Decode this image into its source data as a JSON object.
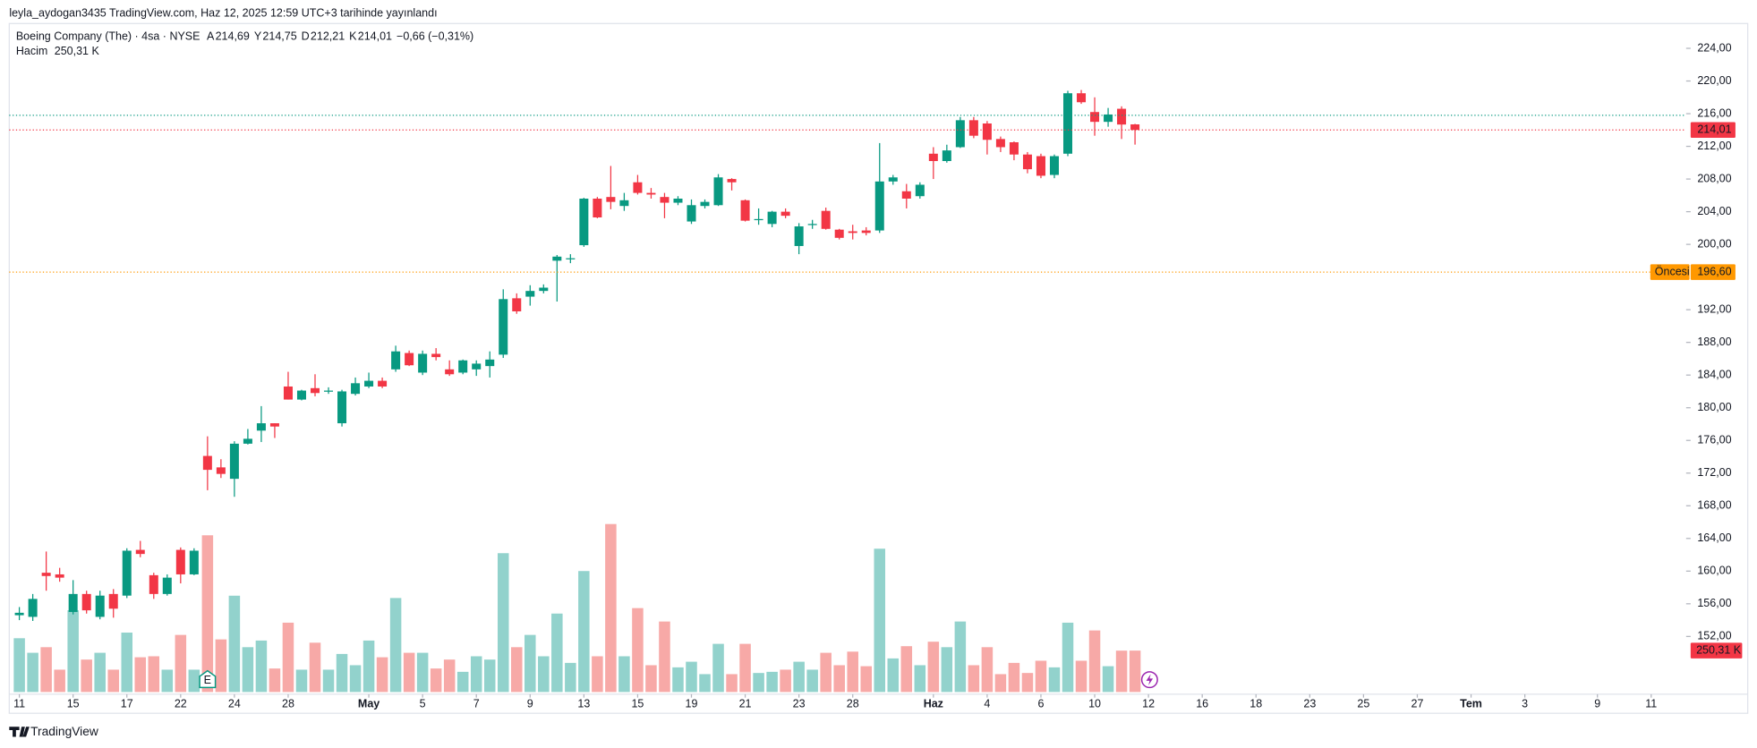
{
  "header": {
    "published": "leyla_aydogan3435 TradingView.com, Haz 12, 2025 12:59 UTC+3 tarihinde yayınlandı",
    "symbol": "Boeing Company (The) · 4sa · NYSE",
    "ohlc": [
      {
        "key": "A",
        "value": "214,69"
      },
      {
        "key": "Y",
        "value": "214,75"
      },
      {
        "key": "D",
        "value": "212,21"
      },
      {
        "key": "K",
        "value": "214,01"
      }
    ],
    "change": "−0,66 (−0,31%)",
    "volume_title": "Hacim",
    "footer": "TradingView"
  },
  "chart_data": {
    "type": "candlestick",
    "open": [
      154.6,
      154.4,
      159.8,
      159.6,
      155.0,
      157.2,
      154.4,
      157.2,
      157.0,
      162.6,
      159.5,
      157.2,
      162.6,
      159.6,
      174.1,
      172.7,
      171.3,
      175.6,
      177.2,
      178.1,
      182.6,
      181.0,
      182.4,
      182.0,
      178.1,
      181.7,
      182.6,
      183.3,
      184.7,
      186.7,
      184.3,
      186.6,
      184.7,
      184.3,
      184.7,
      185.1,
      186.5,
      193.4,
      193.6,
      194.3,
      198.0,
      198.2,
      199.9,
      205.6,
      205.8,
      204.7,
      207.6,
      206.3,
      205.8,
      205.1,
      202.8,
      204.7,
      204.8,
      208.0,
      205.4,
      203.0,
      202.5,
      204.0,
      199.8,
      202.4,
      204.1,
      201.8,
      201.6,
      201.7,
      201.7,
      207.7,
      206.5,
      205.9,
      211.1,
      210.2,
      211.9,
      215.2,
      214.8,
      212.9,
      212.5,
      211.0,
      210.8,
      208.5,
      211.1,
      218.5,
      216.2,
      215.0,
      216.6,
      214.69
    ],
    "high": [
      155.6,
      157.2,
      162.4,
      160.4,
      158.9,
      157.6,
      157.6,
      157.8,
      162.8,
      163.7,
      159.8,
      159.6,
      162.9,
      162.8,
      176.5,
      173.7,
      175.9,
      177.4,
      180.2,
      178.1,
      184.4,
      182.2,
      184.1,
      182.5,
      182.2,
      183.7,
      184.3,
      183.7,
      187.6,
      187.0,
      187.0,
      187.3,
      185.8,
      185.9,
      185.8,
      186.9,
      194.5,
      194.0,
      195.0,
      195.1,
      198.7,
      198.8,
      205.7,
      205.8,
      209.6,
      206.3,
      208.5,
      206.9,
      206.3,
      205.9,
      205.5,
      205.5,
      208.6,
      208.1,
      205.5,
      204.4,
      204.1,
      204.4,
      202.6,
      203.0,
      204.5,
      201.9,
      202.4,
      202.1,
      212.4,
      208.5,
      207.4,
      207.6,
      211.9,
      212.2,
      215.6,
      215.6,
      215.1,
      213.2,
      212.6,
      211.3,
      211.1,
      211.0,
      218.8,
      218.9,
      218.0,
      216.7,
      216.9,
      214.75
    ],
    "low": [
      154.0,
      153.9,
      157.6,
      158.7,
      154.7,
      154.8,
      154.1,
      154.3,
      156.7,
      161.7,
      156.6,
      157.0,
      158.5,
      159.5,
      169.9,
      171.4,
      169.1,
      175.5,
      175.8,
      176.3,
      181.0,
      180.9,
      181.4,
      181.7,
      177.7,
      181.5,
      182.4,
      182.4,
      184.4,
      185.1,
      184.0,
      185.8,
      183.9,
      184.1,
      183.9,
      183.7,
      186.1,
      191.5,
      192.5,
      194.0,
      193.0,
      197.7,
      199.7,
      203.2,
      204.3,
      204.1,
      206.1,
      205.6,
      203.2,
      204.8,
      202.5,
      204.4,
      204.7,
      206.6,
      202.8,
      202.4,
      202.1,
      203.2,
      198.8,
      201.9,
      201.8,
      200.6,
      200.6,
      201.1,
      201.4,
      207.3,
      204.4,
      205.6,
      208.0,
      210.0,
      211.8,
      213.0,
      211.0,
      211.3,
      210.3,
      208.7,
      208.1,
      208.1,
      210.8,
      217.2,
      213.3,
      214.4,
      212.9,
      212.21
    ],
    "close": [
      154.9,
      156.6,
      159.4,
      159.2,
      157.2,
      155.2,
      157.0,
      155.4,
      162.5,
      162.1,
      157.2,
      159.2,
      159.6,
      162.5,
      172.4,
      171.9,
      175.6,
      176.2,
      178.1,
      177.7,
      181.0,
      182.1,
      181.8,
      182.1,
      182.0,
      183.0,
      183.3,
      182.6,
      186.9,
      185.2,
      186.6,
      186.2,
      184.1,
      185.8,
      185.4,
      185.9,
      193.3,
      191.8,
      194.3,
      194.7,
      198.5,
      198.3,
      205.6,
      203.3,
      205.2,
      205.4,
      206.3,
      206.1,
      205.1,
      205.6,
      204.8,
      205.2,
      208.2,
      207.6,
      202.9,
      203.1,
      204.0,
      203.5,
      202.2,
      202.5,
      201.9,
      200.8,
      201.4,
      201.4,
      207.7,
      208.2,
      205.6,
      207.3,
      210.2,
      211.5,
      215.2,
      213.3,
      212.8,
      211.9,
      211.0,
      209.2,
      208.4,
      210.8,
      218.5,
      217.4,
      215.0,
      215.9,
      214.67,
      214.01
    ],
    "volume": [
      325000,
      237000,
      271000,
      135000,
      494000,
      196000,
      237000,
      135000,
      359000,
      210000,
      216000,
      135000,
      345000,
      135000,
      947000,
      318000,
      582000,
      271000,
      311000,
      142000,
      419000,
      135000,
      298000,
      135000,
      230000,
      162000,
      311000,
      210000,
      568000,
      237000,
      237000,
      142000,
      196000,
      122000,
      216000,
      196000,
      839000,
      271000,
      345000,
      216000,
      474000,
      176000,
      731000,
      216000,
      1015000,
      216000,
      507000,
      162000,
      426000,
      149000,
      183000,
      108000,
      291000,
      108000,
      291000,
      115000,
      122000,
      135000,
      183000,
      135000,
      237000,
      162000,
      244000,
      156000,
      866000,
      203000,
      277000,
      162000,
      304000,
      271000,
      426000,
      162000,
      271000,
      108000,
      176000,
      115000,
      189000,
      149000,
      419000,
      189000,
      372000,
      156000,
      250000,
      250310
    ],
    "volume_label": "250,31 K",
    "up_color": "#089981",
    "down_color": "#f23645",
    "volume_up_color": "#92d2cc",
    "volume_down_color": "#f7a9a7",
    "xlim": [
      -0.75,
      124
    ],
    "xticks": [
      {
        "value": 0,
        "label": "11"
      },
      {
        "value": 4,
        "label": "15"
      },
      {
        "value": 8,
        "label": "17"
      },
      {
        "value": 12,
        "label": "22"
      },
      {
        "value": 16,
        "label": "24"
      },
      {
        "value": 20,
        "label": "28"
      },
      {
        "value": 26,
        "label": "May"
      },
      {
        "value": 30,
        "label": "5"
      },
      {
        "value": 34,
        "label": "7"
      },
      {
        "value": 38,
        "label": "9"
      },
      {
        "value": 42,
        "label": "13"
      },
      {
        "value": 46,
        "label": "15"
      },
      {
        "value": 50,
        "label": "19"
      },
      {
        "value": 54,
        "label": "21"
      },
      {
        "value": 58,
        "label": "23"
      },
      {
        "value": 62,
        "label": "28"
      },
      {
        "value": 68,
        "label": "Haz"
      },
      {
        "value": 72,
        "label": "4"
      },
      {
        "value": 76,
        "label": "6"
      },
      {
        "value": 80,
        "label": "10"
      },
      {
        "value": 84,
        "label": "12"
      },
      {
        "value": 88,
        "label": "16"
      },
      {
        "value": 92,
        "label": "18"
      },
      {
        "value": 96,
        "label": "23"
      },
      {
        "value": 100,
        "label": "25"
      },
      {
        "value": 104,
        "label": "27"
      },
      {
        "value": 108,
        "label": "Tem"
      },
      {
        "value": 112,
        "label": "3"
      },
      {
        "value": 117.4,
        "label": "9"
      },
      {
        "value": 121.4,
        "label": "11"
      }
    ],
    "ylim": [
      145.2,
      226.9
    ],
    "yticks": [
      {
        "value": 152,
        "label": "152,00"
      },
      {
        "value": 156,
        "label": "156,00"
      },
      {
        "value": 160,
        "label": "160,00"
      },
      {
        "value": 164,
        "label": "164,00"
      },
      {
        "value": 168,
        "label": "168,00"
      },
      {
        "value": 172,
        "label": "172,00"
      },
      {
        "value": 176,
        "label": "176,00"
      },
      {
        "value": 180,
        "label": "180,00"
      },
      {
        "value": 184,
        "label": "184,00"
      },
      {
        "value": 188,
        "label": "188,00"
      },
      {
        "value": 192,
        "label": "192,00"
      },
      {
        "value": 200,
        "label": "200,00"
      },
      {
        "value": 204,
        "label": "204,00"
      },
      {
        "value": 208,
        "label": "208,00"
      },
      {
        "value": 212,
        "label": "212,00"
      },
      {
        "value": 216,
        "label": "216,00"
      },
      {
        "value": 220,
        "label": "220,00"
      },
      {
        "value": 224,
        "label": "224,00"
      }
    ],
    "price_lines": [
      {
        "value": 215.8,
        "color": "#089981"
      },
      {
        "value": 214.01,
        "color": "#f23645",
        "label": "214,01"
      },
      {
        "value": 196.6,
        "color": "#ff9800",
        "label": "196,60",
        "name": "Öncesi"
      }
    ],
    "events": [
      {
        "label": "E",
        "index": 14
      }
    ]
  }
}
